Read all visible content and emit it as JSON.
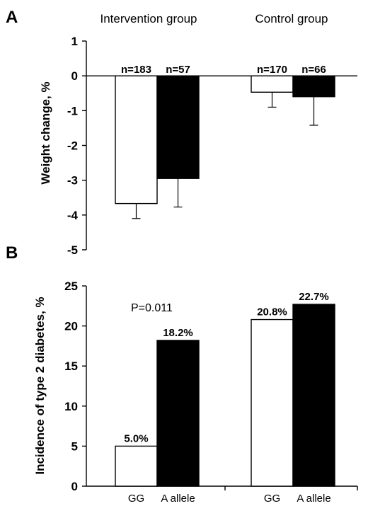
{
  "panels": {
    "a_letter": "A",
    "b_letter": "B"
  },
  "chart_data": [
    {
      "type": "bar",
      "panel": "A",
      "group_titles": [
        "Intervention group",
        "Control group"
      ],
      "ylabel": "Weight change, %",
      "ylim": [
        -5,
        1
      ],
      "yticks": [
        1,
        0,
        -1,
        -2,
        -3,
        -4,
        -5
      ],
      "ytick_labels": [
        "1",
        "0",
        "-1",
        "-2",
        "-3",
        "-4",
        "-5"
      ],
      "series": [
        {
          "fill": "#ffffff",
          "values": [
            -3.67,
            -0.47
          ],
          "error": [
            0.43,
            0.43
          ],
          "n_labels": [
            "n=183",
            "n=170"
          ]
        },
        {
          "fill": "#000000",
          "values": [
            -2.95,
            -0.6
          ],
          "error": [
            0.82,
            0.82
          ],
          "n_labels": [
            "n=57",
            "n=66"
          ]
        }
      ]
    },
    {
      "type": "bar",
      "panel": "B",
      "ylabel": "Incidence of type 2 diabetes, %",
      "ylim": [
        0,
        25
      ],
      "yticks": [
        0,
        5,
        10,
        15,
        20,
        25
      ],
      "ytick_labels": [
        "0",
        "5",
        "10",
        "15",
        "20",
        "25"
      ],
      "categories": [
        "GG",
        "A allele"
      ],
      "annotation": "P=0.011",
      "series": [
        {
          "fill": "#ffffff",
          "values": [
            5.0,
            20.8
          ],
          "labels": [
            "5.0%",
            "20.8%"
          ]
        },
        {
          "fill": "#000000",
          "values": [
            18.2,
            22.7
          ],
          "labels": [
            "18.2%",
            "22.7%"
          ]
        }
      ]
    }
  ]
}
